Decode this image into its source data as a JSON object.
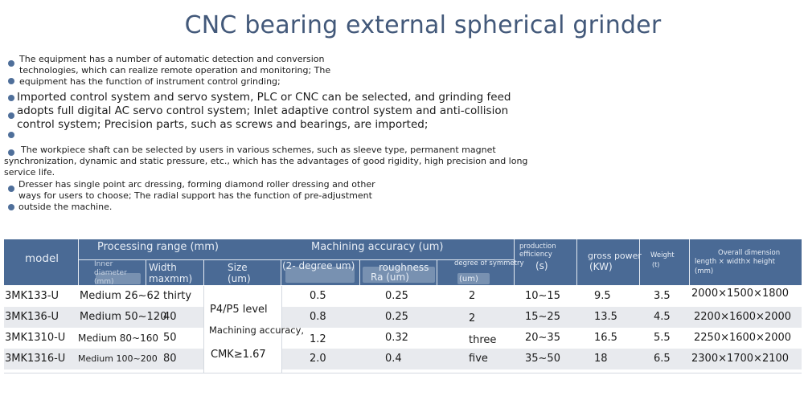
{
  "title": "CNC bearing external spherical grinder",
  "bullets": [
    {
      "lines": [
        "The equipment has a number of automatic detection and conversion",
        "technologies, which can realize remote operation and monitoring; The",
        "equipment has the function of instrument control grinding;"
      ]
    },
    {
      "lines": [
        "Imported control system and servo system, PLC or CNC can be selected, and grinding feed",
        "adopts full digital AC servo control system; Inlet adaptive control system and anti-collision",
        "control system; Precision parts, such as screws and bearings, are imported;"
      ]
    },
    {
      "lines": [
        "The workpiece shaft can be selected by users in various schemes, such as sleeve type, permanent magnet",
        "synchronization, dynamic and static pressure, etc., which has the advantages of good rigidity, high precision and long",
        "service life."
      ]
    },
    {
      "lines": [
        "Dresser has single point arc dressing, forming diamond roller dressing and other",
        "ways for users to choose; The radial support has the function of pre-adjustment",
        "outside the machine."
      ]
    }
  ],
  "table": {
    "headers": {
      "model": "model",
      "processing_range": "Processing range (mm)",
      "inner_diameter": "Inner diameter (mm)",
      "width": "Width maxmm)",
      "machining_accuracy": "Machining accuracy (um)",
      "size": "Size (um)",
      "two_degree": "(2- degree um)",
      "roughness": "roughness",
      "roughness_unit": "Ra (um)",
      "symmetry": "degree of symmetry",
      "symmetry_unit": "(um)",
      "production_efficiency": "production efficiency",
      "production_unit": "(s)",
      "gross_power": "gross power",
      "gross_power_unit": "(KW)",
      "weight": "Weight",
      "weight_unit": "(t)",
      "overall_dimension": "Overall dimension",
      "overall_dimension_sub": "length × width× height",
      "overall_dimension_unit": "(mm)"
    },
    "merged_size_cell": {
      "line1": "P4/P5 level",
      "line2": "Machining accuracy,",
      "line3": "CMK≥1.67"
    },
    "rows": [
      {
        "model": "3MK133-U",
        "inner": "Medium 26~62",
        "width": "thirty",
        "accuracy": "0.5",
        "roughness": "0.25",
        "symmetry": "2",
        "efficiency": "10~15",
        "power": "9.5",
        "weight": "3.5",
        "dimension": "2000×1500×1800"
      },
      {
        "model": "3MK136-U",
        "inner": "Medium 50~120",
        "width": "40",
        "accuracy": "0.8",
        "roughness": "0.25",
        "symmetry": "2",
        "efficiency": "15~25",
        "power": "13.5",
        "weight": "4.5",
        "dimension": "2200×1600×2000"
      },
      {
        "model": "3MK1310-U",
        "inner": "Medium 80~160",
        "width": "50",
        "accuracy": "1.2",
        "roughness": "0.32",
        "symmetry": "three",
        "efficiency": "20~35",
        "power": "16.5",
        "weight": "5.5",
        "dimension": "2250×1600×2000"
      },
      {
        "model": "3MK1316-U",
        "inner": "Medium 100~200",
        "width": "80",
        "accuracy": "2.0",
        "roughness": "0.4",
        "symmetry": "five",
        "efficiency": "35~50",
        "power": "18",
        "weight": "6.5",
        "dimension": "2300×1700×2100"
      }
    ]
  }
}
